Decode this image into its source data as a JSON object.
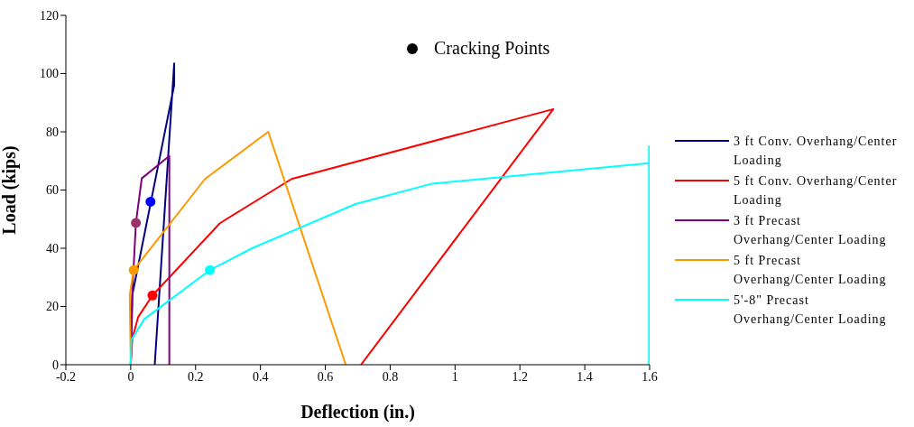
{
  "chart_data": {
    "type": "line",
    "xlabel": "Deflection (in.)",
    "ylabel": "Load (kips)",
    "xlim": [
      -0.2,
      1.6
    ],
    "xticks": [
      -0.2,
      0,
      0.2,
      0.4,
      0.6,
      0.8,
      1,
      1.2,
      1.4,
      1.6
    ],
    "ylim": [
      0,
      120
    ],
    "yticks": [
      0,
      20,
      40,
      60,
      80,
      100,
      120
    ],
    "legend": "right",
    "series": [
      {
        "name": "3 ft Conv. Overhang/Center Loading",
        "color": "#000080",
        "x": [
          0,
          0.005,
          0.134,
          0.134,
          0.074
        ],
        "values": [
          0,
          24,
          96,
          103.5,
          0
        ]
      },
      {
        "name": "5 ft Conv. Overhang/Center Loading",
        "color": "#ff0000",
        "x": [
          0,
          0.005,
          0.023,
          0.067,
          0.275,
          0.496,
          1.303,
          0.71
        ],
        "values": [
          0,
          9,
          16.4,
          23.8,
          48.6,
          63.8,
          87.8,
          0
        ]
      },
      {
        "name": "3 ft Precast Overhang/Center Loading",
        "color": "#800080",
        "x": [
          0,
          0.005,
          0.016,
          0.034,
          0.119,
          0.119
        ],
        "values": [
          0,
          25,
          48.7,
          64,
          71.7,
          0
        ]
      },
      {
        "name": "5 ft Precast Overhang/Center Loading",
        "color": "#ff9900",
        "x": [
          0,
          -0.003,
          0.009,
          0.229,
          0.424,
          0.663
        ],
        "values": [
          0,
          24,
          32.5,
          63.8,
          80,
          0
        ]
      },
      {
        "name": "5'-8\" Precast Overhang/Center Loading",
        "color": "#00ffff",
        "x": [
          0,
          0.002,
          0.042,
          0.244,
          0.374,
          0.693,
          0.93,
          1.598,
          1.598,
          1.598
        ],
        "values": [
          0,
          8.5,
          15.7,
          32.5,
          40,
          55.2,
          62.2,
          69.2,
          75,
          0
        ]
      },
      {
        "name": "Cracking Points",
        "type": "scatter",
        "color": "#000000",
        "x": [
          0.061,
          0.016,
          0.009,
          0.067,
          0.244
        ],
        "values": [
          56,
          48.7,
          32.5,
          23.8,
          32.5
        ],
        "colors": [
          "#0000ff",
          "#993366",
          "#ff9900",
          "#ff0000",
          "#00ffff"
        ]
      }
    ]
  }
}
